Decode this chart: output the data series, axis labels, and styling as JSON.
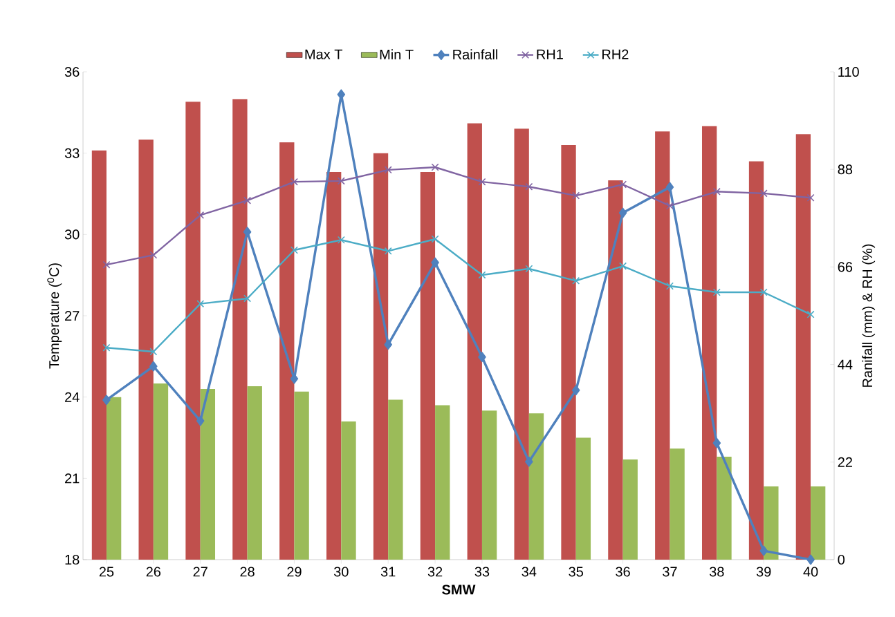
{
  "chart_data": {
    "type": "bar",
    "xlabel": "SMW",
    "ylabel": "Temperature ($^{0}$C)",
    "y2label": "Ranifall (mm) & RH (%)",
    "categories": [
      "25",
      "26",
      "27",
      "28",
      "29",
      "30",
      "31",
      "32",
      "33",
      "34",
      "35",
      "36",
      "37",
      "38",
      "39",
      "40"
    ],
    "ylim": [
      18,
      36
    ],
    "yticks": [
      18,
      21,
      24,
      27,
      30,
      33,
      36
    ],
    "y2lim": [
      0,
      110
    ],
    "y2ticks": [
      0,
      22,
      44,
      66,
      88,
      110
    ],
    "legend": "top",
    "series": [
      {
        "name": "Max T",
        "type": "bar",
        "color": "#c0504d",
        "values": [
          33.1,
          33.5,
          34.9,
          35.0,
          33.4,
          32.3,
          33.0,
          32.3,
          34.1,
          33.9,
          33.3,
          32.0,
          33.8,
          34.0,
          32.7,
          33.7
        ]
      },
      {
        "name": "Min T",
        "type": "bar",
        "color": "#9bbb59",
        "values": [
          24.0,
          24.5,
          24.3,
          24.4,
          24.2,
          23.1,
          23.9,
          23.7,
          23.5,
          23.4,
          22.5,
          21.7,
          22.1,
          21.8,
          20.7,
          20.7
        ]
      },
      {
        "name": "Rainfall",
        "type": "line",
        "axis": "y2",
        "marker": "diamond",
        "color": "#4f81bd",
        "values": [
          36.0,
          43.6,
          31.3,
          73.9,
          40.8,
          104.9,
          48.5,
          67.0,
          45.7,
          22.1,
          38.2,
          78.2,
          84.0,
          26.3,
          2.0,
          0
        ]
      },
      {
        "name": "RH1",
        "type": "line",
        "axis": "y2",
        "marker": "cross",
        "color": "#8064a2",
        "values": [
          66.5,
          68.7,
          77.7,
          81.0,
          85.2,
          85.4,
          87.9,
          88.5,
          85.2,
          84.1,
          82.1,
          84.6,
          79.8,
          83.0,
          82.6,
          81.6
        ]
      },
      {
        "name": "RH2",
        "type": "line",
        "axis": "y2",
        "marker": "cross",
        "color": "#4bacc6",
        "values": [
          47.8,
          46.9,
          57.7,
          58.9,
          69.8,
          72.1,
          69.6,
          72.3,
          64.2,
          65.6,
          62.9,
          66.2,
          61.7,
          60.3,
          60.3,
          55.3
        ]
      }
    ]
  }
}
